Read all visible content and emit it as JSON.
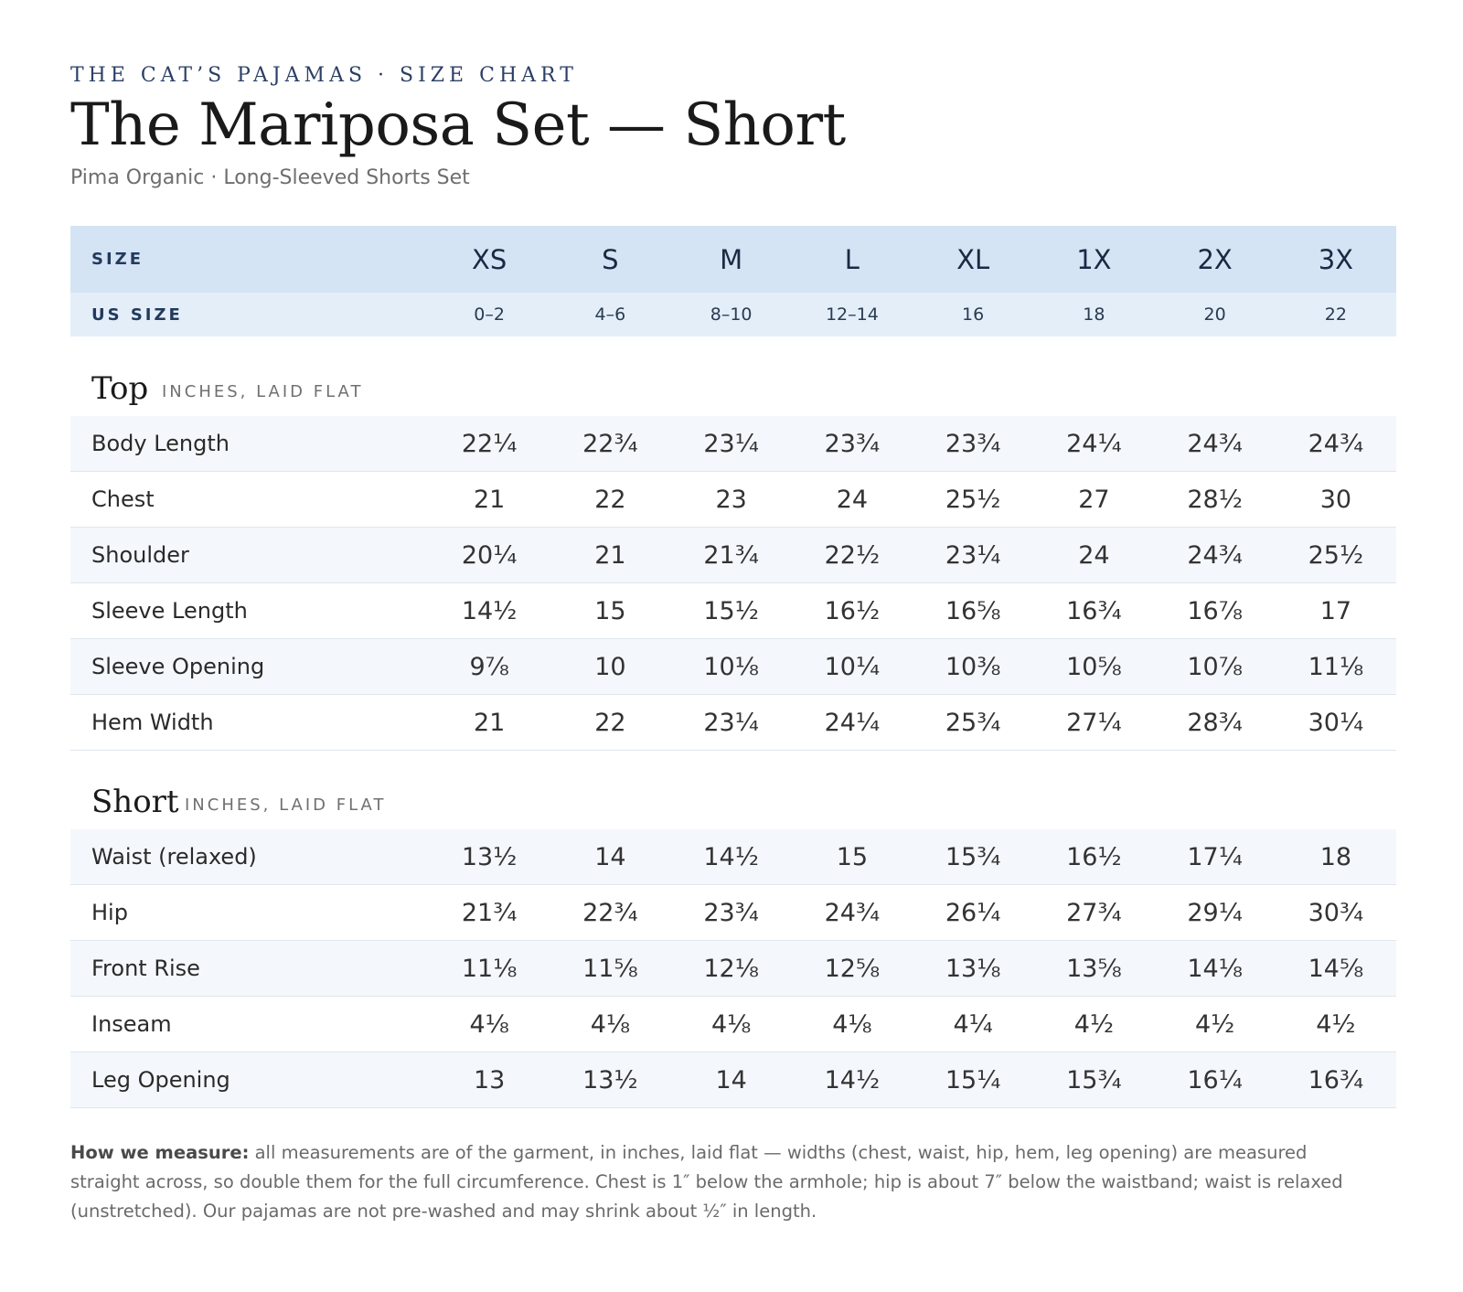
{
  "header": {
    "eyebrow": "THE CAT’S PAJAMAS · SIZE CHART",
    "title": "The Mariposa Set — Short",
    "subtitle": "Pima Organic · Long-Sleeved Shorts Set"
  },
  "sizes": {
    "size_label": "SIZE",
    "us_label": "US SIZE",
    "labels": [
      "XS",
      "S",
      "M",
      "L",
      "XL",
      "1X",
      "2X",
      "3X"
    ],
    "us": [
      "0–2",
      "4–6",
      "8–10",
      "12–14",
      "16",
      "18",
      "20",
      "22"
    ]
  },
  "top": {
    "title": "Top",
    "unit": "INCHES, LAID FLAT",
    "rows": [
      {
        "label": "Body Length",
        "values": [
          "22¼",
          "22¾",
          "23¼",
          "23¾",
          "23¾",
          "24¼",
          "24¾",
          "24¾"
        ]
      },
      {
        "label": "Chest",
        "values": [
          "21",
          "22",
          "23",
          "24",
          "25½",
          "27",
          "28½",
          "30"
        ]
      },
      {
        "label": "Shoulder",
        "values": [
          "20¼",
          "21",
          "21¾",
          "22½",
          "23¼",
          "24",
          "24¾",
          "25½"
        ]
      },
      {
        "label": "Sleeve Length",
        "values": [
          "14½",
          "15",
          "15½",
          "16½",
          "16⅝",
          "16¾",
          "16⅞",
          "17"
        ]
      },
      {
        "label": "Sleeve Opening",
        "values": [
          "9⅞",
          "10",
          "10⅛",
          "10¼",
          "10⅜",
          "10⅝",
          "10⅞",
          "11⅛"
        ]
      },
      {
        "label": "Hem Width",
        "values": [
          "21",
          "22",
          "23¼",
          "24¼",
          "25¾",
          "27¼",
          "28¾",
          "30¼"
        ]
      }
    ]
  },
  "short": {
    "title": "Short",
    "unit": "INCHES, LAID FLAT",
    "rows": [
      {
        "label": "Waist (relaxed)",
        "values": [
          "13½",
          "14",
          "14½",
          "15",
          "15¾",
          "16½",
          "17¼",
          "18"
        ]
      },
      {
        "label": "Hip",
        "values": [
          "21¾",
          "22¾",
          "23¾",
          "24¾",
          "26¼",
          "27¾",
          "29¼",
          "30¾"
        ]
      },
      {
        "label": "Front Rise",
        "values": [
          "11⅛",
          "11⅝",
          "12⅛",
          "12⅝",
          "13⅛",
          "13⅝",
          "14⅛",
          "14⅝"
        ]
      },
      {
        "label": "Inseam",
        "values": [
          "4⅛",
          "4⅛",
          "4⅛",
          "4⅛",
          "4¼",
          "4½",
          "4½",
          "4½"
        ]
      },
      {
        "label": "Leg Opening",
        "values": [
          "13",
          "13½",
          "14",
          "14½",
          "15¼",
          "15¾",
          "16¼",
          "16¾"
        ]
      }
    ]
  },
  "note": {
    "lead": "How we measure:",
    "text": " all measurements are of the garment, in inches, laid flat — widths (chest, waist, hip, hem, leg opening) are measured straight across, so double them for the full circumference. Chest is 1″ below the armhole; hip is about 7″ below the waistband; waist is relaxed (unstretched). Our pajamas are not pre-washed and may shrink about ½″ in length."
  }
}
